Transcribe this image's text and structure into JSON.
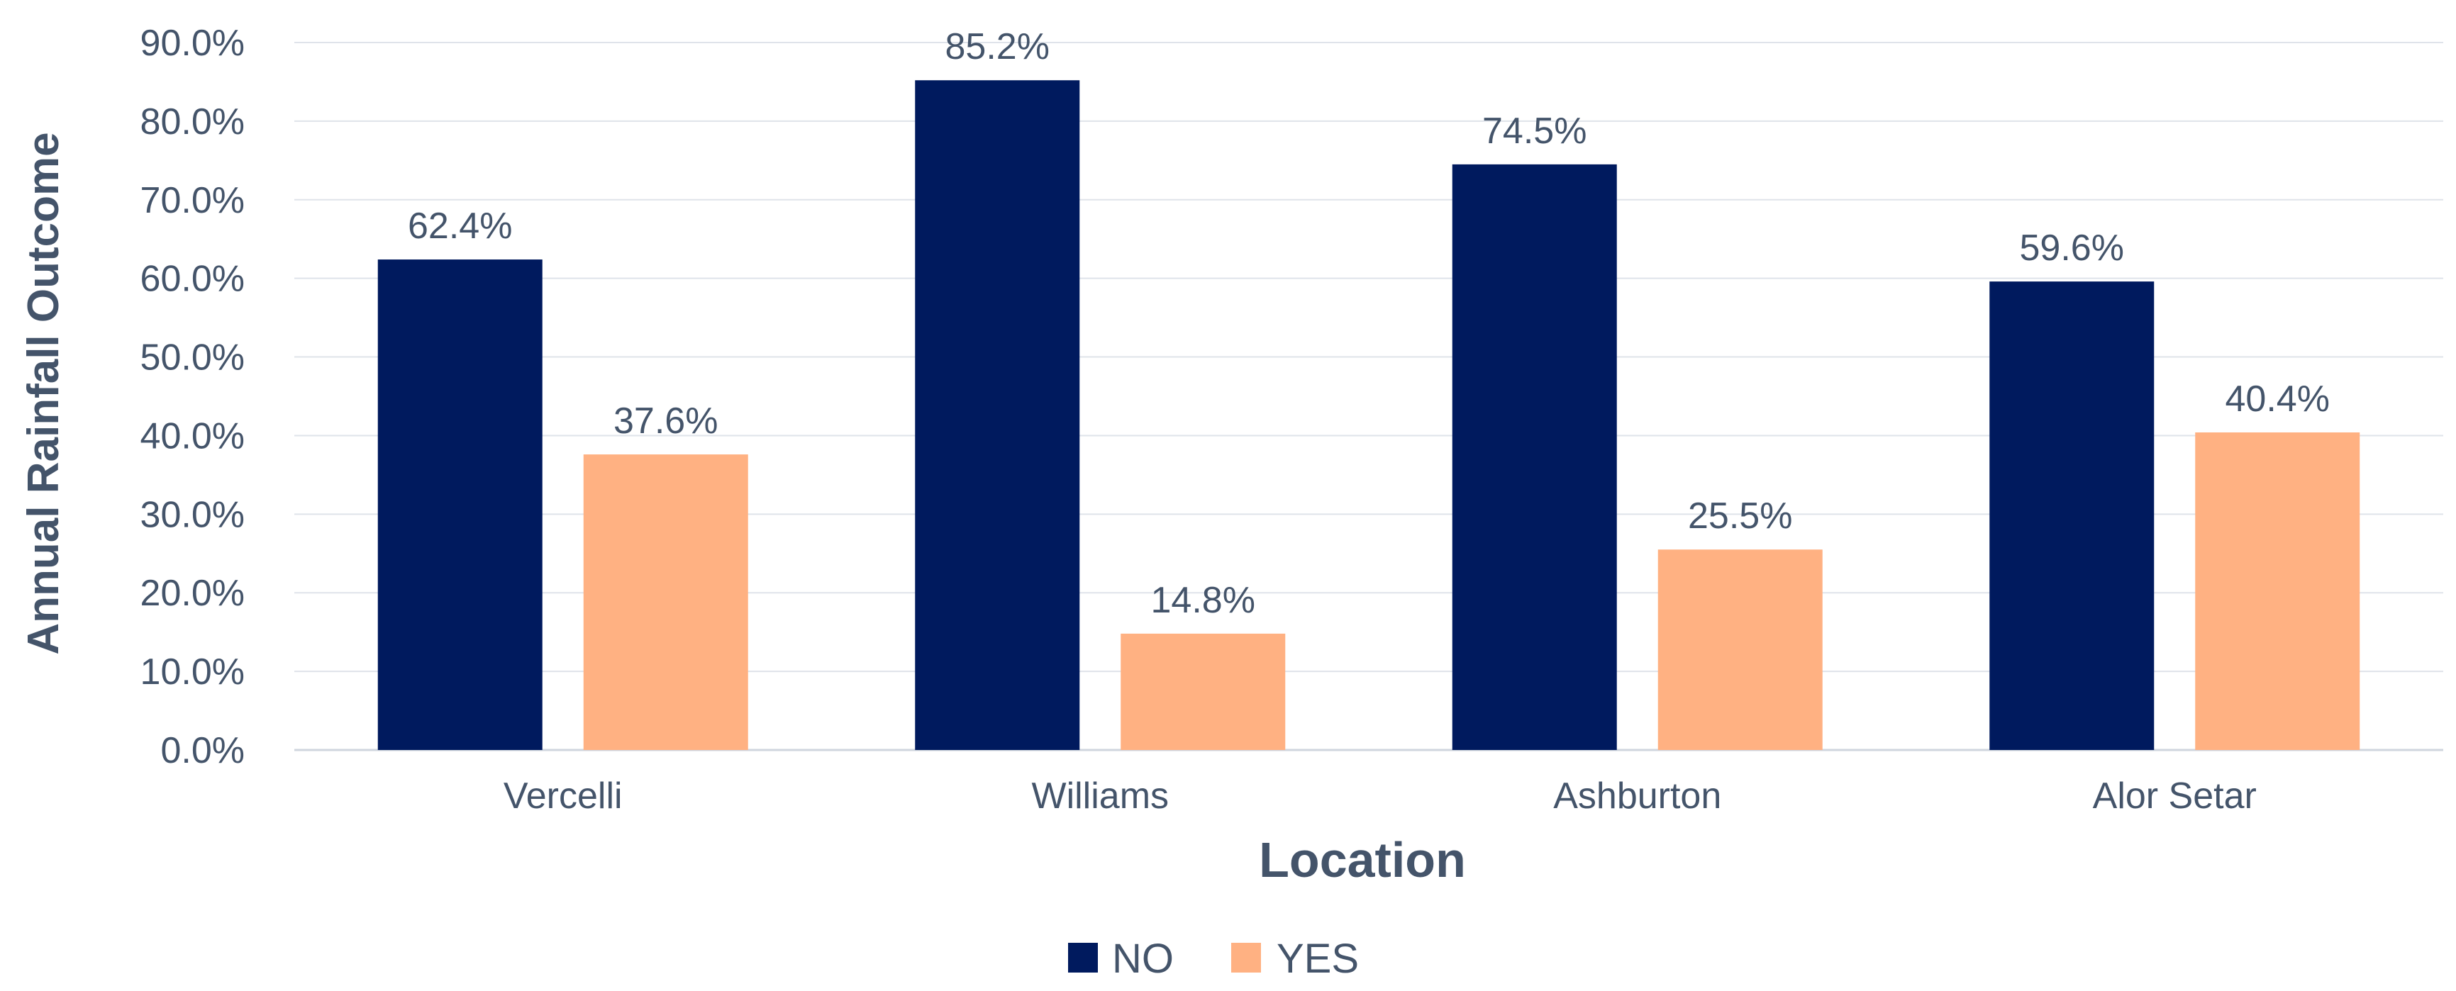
{
  "chart_data": {
    "type": "bar",
    "title": "",
    "xlabel": "Location",
    "ylabel": "Annual Rainfall Outcome",
    "categories": [
      "Vercelli",
      "Williams",
      "Ashburton",
      "Alor Setar"
    ],
    "series": [
      {
        "name": "NO",
        "color": "#001a5e",
        "values": [
          62.4,
          85.2,
          74.5,
          59.6
        ],
        "labels": [
          "62.4%",
          "85.2%",
          "74.5%",
          "59.6%"
        ]
      },
      {
        "name": "YES",
        "color": "#ffb182",
        "values": [
          37.6,
          14.8,
          25.5,
          40.4
        ],
        "labels": [
          "37.6%",
          "14.8%",
          "25.5%",
          "40.4%"
        ]
      }
    ],
    "ylim": [
      0,
      90
    ],
    "yticks": [
      0,
      10,
      20,
      30,
      40,
      50,
      60,
      70,
      80,
      90
    ],
    "ytick_labels": [
      "0.0%",
      "10.0%",
      "20.0%",
      "30.0%",
      "40.0%",
      "50.0%",
      "60.0%",
      "70.0%",
      "80.0%",
      "90.0%"
    ],
    "grid": true,
    "legend": {
      "position": "bottom"
    }
  }
}
